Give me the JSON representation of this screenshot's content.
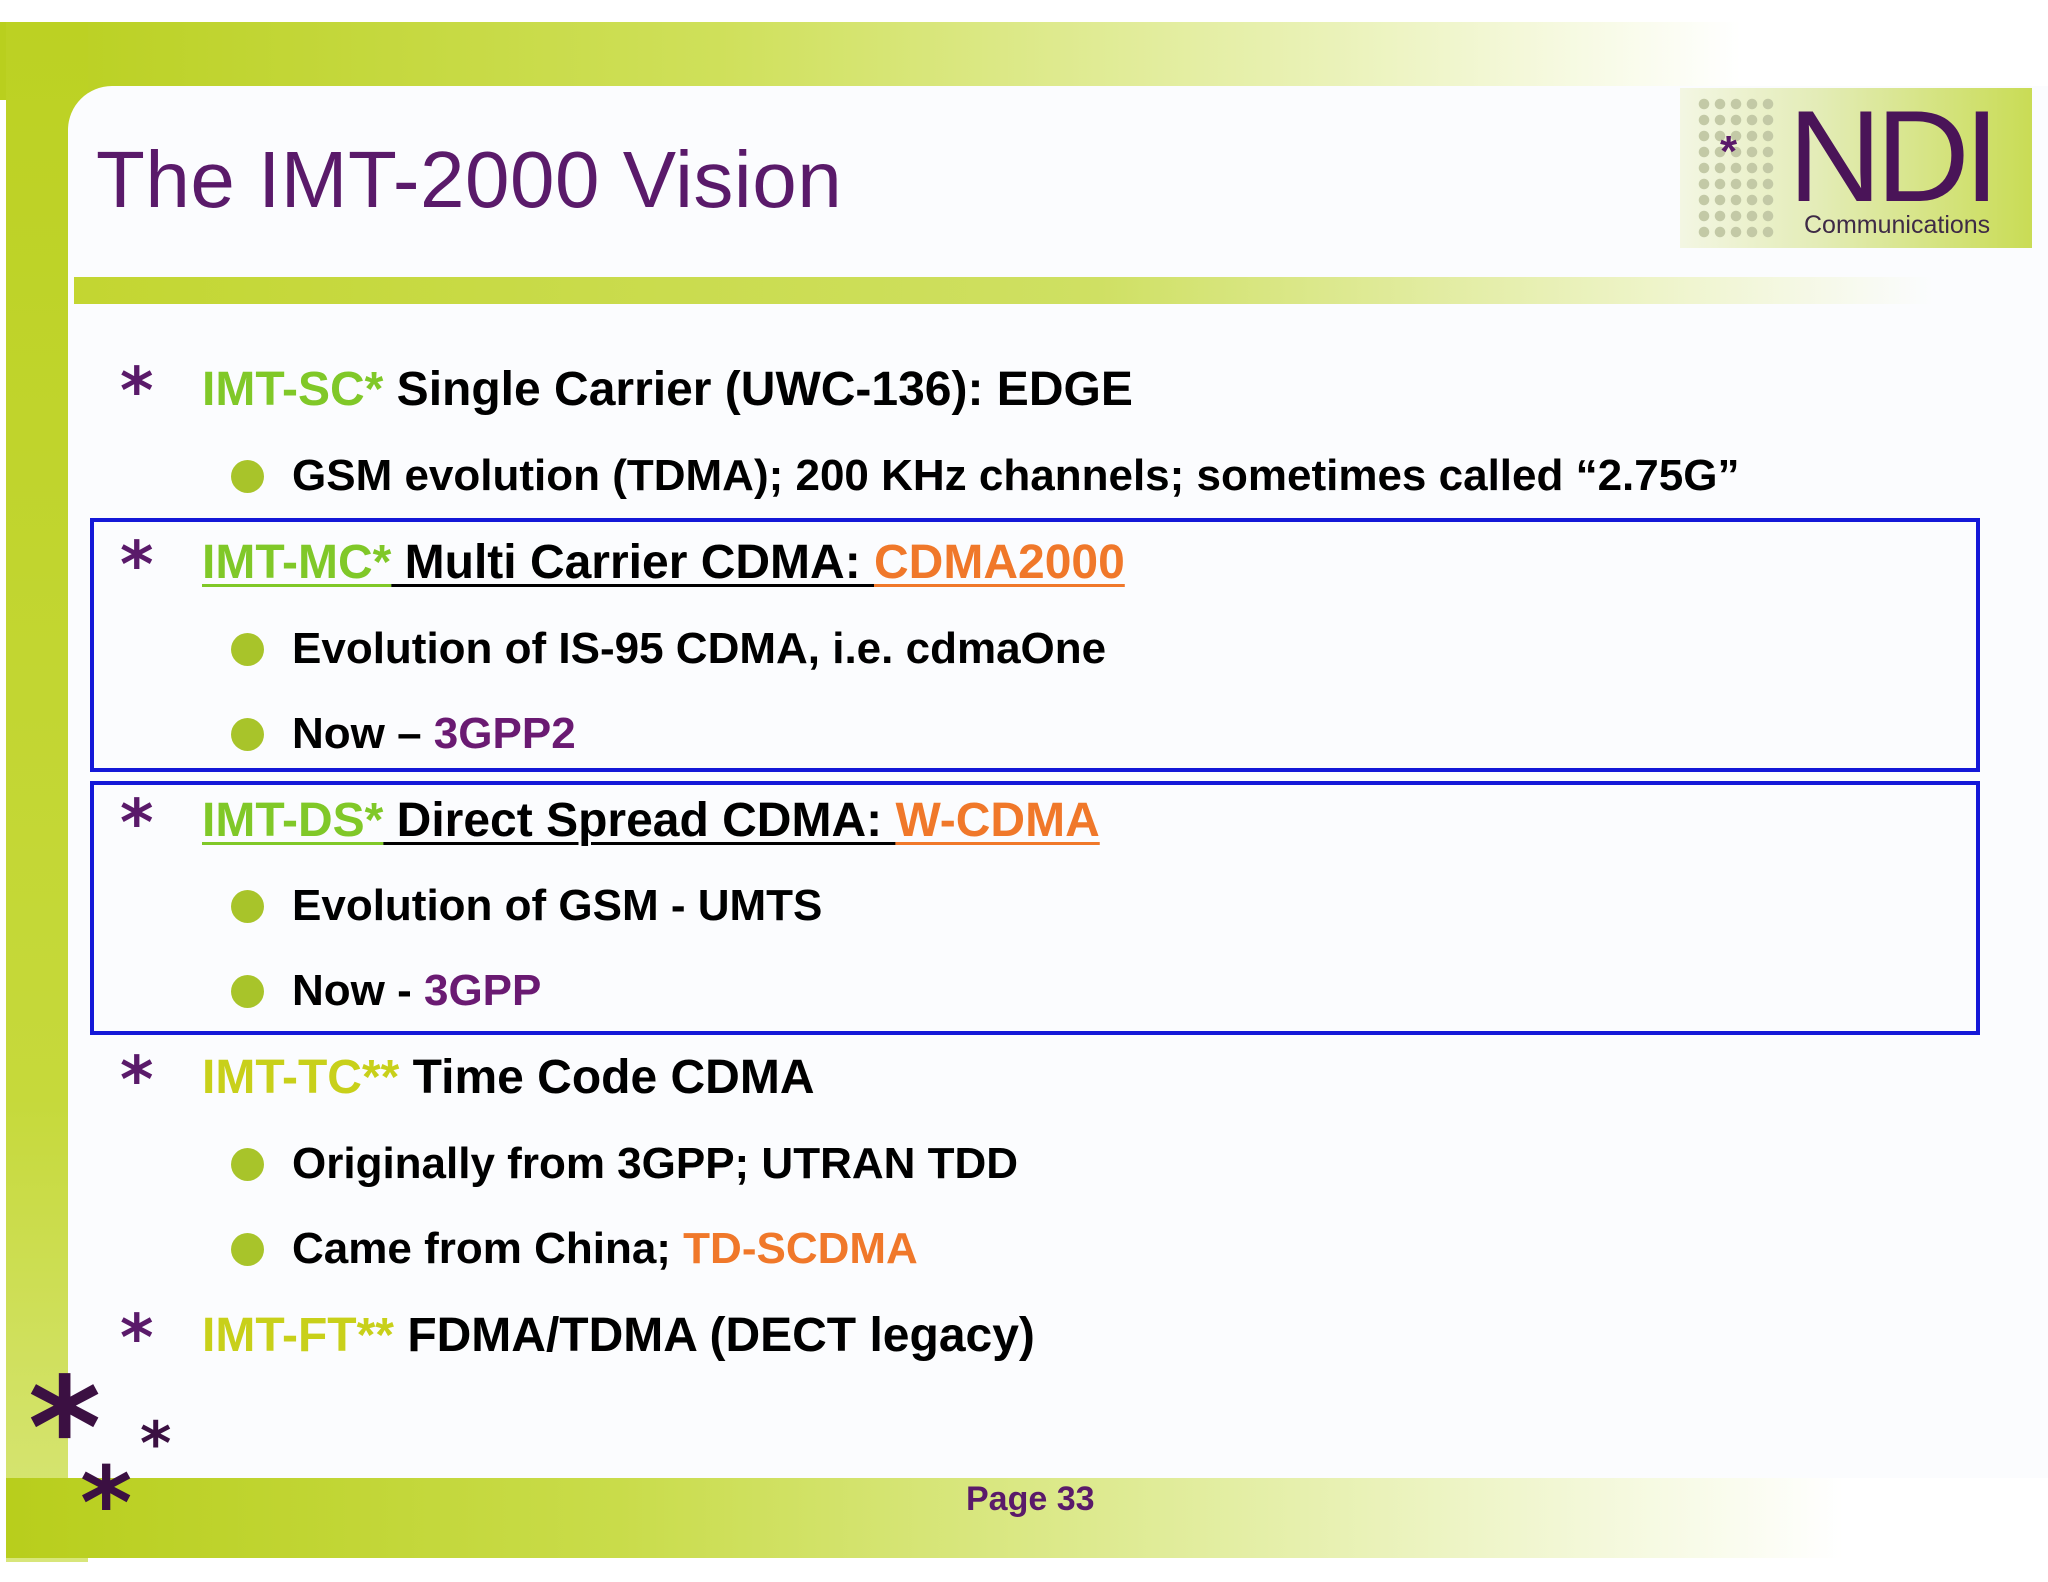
{
  "title": "The IMT-2000 Vision",
  "logo": {
    "brand": "NDI",
    "subtitle": "Communications"
  },
  "colors": {
    "title": "#5a1a6a",
    "green": "#80c828",
    "yellow_green": "#c8d01a",
    "orange": "#f0782a",
    "purple": "#6a1a72",
    "highlight_box": "#1418d8",
    "bullet_dot": "#a8c42a"
  },
  "items": [
    {
      "tag": "IMT-SC*",
      "text": " Single Carrier (UWC-136): EDGE",
      "subs": [
        {
          "text": "GSM evolution (TDMA); 200 KHz channels; sometimes called “2.75G”"
        }
      ]
    },
    {
      "tag": "IMT-MC*",
      "text": " Multi Carrier CDMA: ",
      "accent": "CDMA2000",
      "subs": [
        {
          "text": "Evolution of IS-95 CDMA, i.e. cdmaOne"
        },
        {
          "text": "Now – ",
          "accent": "3GPP2"
        }
      ]
    },
    {
      "tag": "IMT-DS*",
      "text": " Direct Spread CDMA: ",
      "accent": "W-CDMA",
      "subs": [
        {
          "text": "Evolution of GSM - UMTS"
        },
        {
          "text": "Now - ",
          "accent": "3GPP"
        }
      ]
    },
    {
      "tag": "IMT-TC**",
      "text": " Time Code CDMA",
      "subs": [
        {
          "text": "Originally from 3GPP; UTRAN TDD"
        },
        {
          "text": "Came from China; ",
          "accent": "TD-SCDMA"
        }
      ]
    },
    {
      "tag": "IMT-FT**",
      "text": " FDMA/TDMA (DECT legacy)",
      "subs": []
    }
  ],
  "footer": {
    "page_label": "Page 33"
  }
}
